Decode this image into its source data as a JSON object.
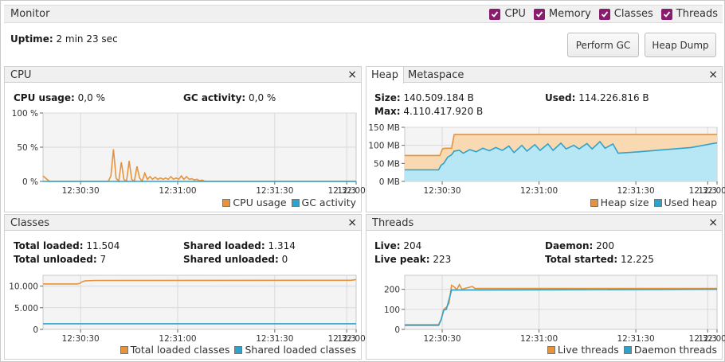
{
  "app": {
    "title": "Monitor",
    "toggles": [
      {
        "label": "CPU",
        "checked": true
      },
      {
        "label": "Memory",
        "checked": true
      },
      {
        "label": "Classes",
        "checked": true
      },
      {
        "label": "Threads",
        "checked": true
      }
    ],
    "uptime_label": "Uptime:",
    "uptime_value": "2 min 23 sec",
    "buttons": {
      "perform_gc": "Perform GC",
      "heap_dump": "Heap Dump"
    },
    "close_glyph": "×"
  },
  "colors": {
    "orange": "#e8923a",
    "blue": "#2fa2cc",
    "grid": "#d9d9d9",
    "plot_bg": "#f4f4f4",
    "accent": "#8a1c6e"
  },
  "cpu": {
    "title": "CPU",
    "stats": {
      "cpu_usage_label": "CPU usage:",
      "cpu_usage_value": "0,0 %",
      "gc_activity_label": "GC activity:",
      "gc_activity_value": "0,0 %"
    },
    "legend": [
      "CPU usage",
      "GC activity"
    ]
  },
  "heap": {
    "tabs": [
      "Heap",
      "Metaspace"
    ],
    "stats": {
      "size_label": "Size:",
      "size_value": "140.509.184 B",
      "used_label": "Used:",
      "used_value": "114.226.816 B",
      "max_label": "Max:",
      "max_value": "4.110.417.920 B"
    },
    "legend": [
      "Heap size",
      "Used heap"
    ]
  },
  "classes": {
    "title": "Classes",
    "stats": {
      "total_loaded_label": "Total loaded:",
      "total_loaded_value": "11.504",
      "shared_loaded_label": "Shared loaded:",
      "shared_loaded_value": "1.314",
      "total_unloaded_label": "Total unloaded:",
      "total_unloaded_value": "7",
      "shared_unloaded_label": "Shared unloaded:",
      "shared_unloaded_value": "0"
    },
    "legend": [
      "Total loaded classes",
      "Shared loaded classes"
    ]
  },
  "threads": {
    "title": "Threads",
    "stats": {
      "live_label": "Live:",
      "live_value": "204",
      "daemon_label": "Daemon:",
      "daemon_value": "200",
      "live_peak_label": "Live peak:",
      "live_peak_value": "223",
      "total_started_label": "Total started:",
      "total_started_value": "12.225"
    },
    "legend": [
      "Live threads",
      "Daemon threads"
    ]
  },
  "chart_data": [
    {
      "id": "cpu",
      "type": "line",
      "x_ticks": [
        "12:30:30",
        "12:31:00",
        "12:31:30",
        "12:32:00",
        "12:3"
      ],
      "y_ticks": [
        "0 %",
        "50 %",
        "100 %"
      ],
      "ylim": [
        0,
        100
      ],
      "grid": true,
      "legend_position": "bottom-right",
      "series": [
        {
          "name": "CPU usage",
          "color": "#e8923a",
          "points": [
            [
              0,
              8
            ],
            [
              3,
              3
            ],
            [
              5,
              0
            ],
            [
              50,
              0
            ],
            [
              52,
              8
            ],
            [
              54,
              47
            ],
            [
              56,
              5
            ],
            [
              58,
              0
            ],
            [
              60,
              28
            ],
            [
              62,
              3
            ],
            [
              64,
              0
            ],
            [
              66,
              30
            ],
            [
              68,
              3
            ],
            [
              70,
              0
            ],
            [
              72,
              22
            ],
            [
              74,
              5
            ],
            [
              76,
              0
            ],
            [
              78,
              12
            ],
            [
              80,
              3
            ],
            [
              82,
              7
            ],
            [
              84,
              3
            ],
            [
              86,
              6
            ],
            [
              88,
              3
            ],
            [
              90,
              5
            ],
            [
              92,
              3
            ],
            [
              94,
              5
            ],
            [
              96,
              3
            ],
            [
              98,
              7
            ],
            [
              100,
              3
            ],
            [
              102,
              5
            ],
            [
              104,
              3
            ],
            [
              106,
              8
            ],
            [
              108,
              3
            ],
            [
              110,
              7
            ],
            [
              112,
              3
            ],
            [
              114,
              4
            ],
            [
              116,
              2
            ],
            [
              118,
              3
            ],
            [
              120,
              1
            ],
            [
              122,
              2
            ],
            [
              124,
              0
            ],
            [
              240,
              0
            ]
          ]
        },
        {
          "name": "GC activity",
          "color": "#2fa2cc",
          "points": [
            [
              0,
              0
            ],
            [
              240,
              0
            ]
          ]
        }
      ]
    },
    {
      "id": "heap",
      "type": "area",
      "x_ticks": [
        "12:30:30",
        "12:31:00",
        "12:31:30",
        "12:32:00",
        "12:3"
      ],
      "y_ticks": [
        "0 MB",
        "50 MB",
        "100 MB",
        "150 MB"
      ],
      "ylim": [
        0,
        150
      ],
      "grid": true,
      "legend_position": "bottom-right",
      "series": [
        {
          "name": "Heap size",
          "color": "#e8923a",
          "points": [
            [
              0,
              72
            ],
            [
              27,
              72
            ],
            [
              29,
              90
            ],
            [
              31,
              92
            ],
            [
              36,
              92
            ],
            [
              38,
              130
            ],
            [
              240,
              130
            ]
          ]
        },
        {
          "name": "Used heap",
          "color": "#2fa2cc",
          "points": [
            [
              0,
              32
            ],
            [
              26,
              32
            ],
            [
              28,
              45
            ],
            [
              30,
              50
            ],
            [
              33,
              67
            ],
            [
              36,
              74
            ],
            [
              38,
              84
            ],
            [
              42,
              86
            ],
            [
              45,
              78
            ],
            [
              50,
              88
            ],
            [
              55,
              82
            ],
            [
              60,
              92
            ],
            [
              65,
              85
            ],
            [
              70,
              94
            ],
            [
              75,
              86
            ],
            [
              80,
              98
            ],
            [
              84,
              80
            ],
            [
              90,
              100
            ],
            [
              94,
              84
            ],
            [
              100,
              102
            ],
            [
              104,
              86
            ],
            [
              110,
              104
            ],
            [
              114,
              86
            ],
            [
              120,
              106
            ],
            [
              124,
              90
            ],
            [
              130,
              100
            ],
            [
              134,
              90
            ],
            [
              140,
              105
            ],
            [
              144,
              90
            ],
            [
              150,
              110
            ],
            [
              154,
              92
            ],
            [
              160,
              104
            ],
            [
              164,
              78
            ],
            [
              180,
              82
            ],
            [
              200,
              88
            ],
            [
              220,
              94
            ],
            [
              240,
              107
            ]
          ]
        }
      ]
    },
    {
      "id": "classes",
      "type": "line",
      "x_ticks": [
        "12:30:30",
        "12:31:00",
        "12:31:30",
        "12:32:00",
        "12:3"
      ],
      "y_ticks": [
        "0",
        "5.000",
        "10.000"
      ],
      "ylim": [
        0,
        12500
      ],
      "grid": true,
      "legend_position": "bottom-right",
      "series": [
        {
          "name": "Total loaded classes",
          "color": "#e8923a",
          "points": [
            [
              0,
              10500
            ],
            [
              26,
              10500
            ],
            [
              28,
              10600
            ],
            [
              30,
              11000
            ],
            [
              32,
              11200
            ],
            [
              40,
              11300
            ],
            [
              236,
              11350
            ],
            [
              240,
              11504
            ]
          ]
        },
        {
          "name": "Shared loaded classes",
          "color": "#2fa2cc",
          "points": [
            [
              0,
              1314
            ],
            [
              240,
              1314
            ]
          ]
        }
      ]
    },
    {
      "id": "threads",
      "type": "line",
      "x_ticks": [
        "12:30:30",
        "12:31:00",
        "12:31:30",
        "12:32:00",
        "12:3"
      ],
      "y_ticks": [
        "0",
        "100",
        "200"
      ],
      "ylim": [
        0,
        270
      ],
      "grid": true,
      "legend_position": "bottom-right",
      "series": [
        {
          "name": "Live threads",
          "color": "#e8923a",
          "points": [
            [
              0,
              24
            ],
            [
              26,
              24
            ],
            [
              28,
              50
            ],
            [
              30,
              100
            ],
            [
              32,
              110
            ],
            [
              34,
              130
            ],
            [
              36,
              220
            ],
            [
              38,
              212
            ],
            [
              40,
              198
            ],
            [
              42,
              223
            ],
            [
              44,
              200
            ],
            [
              46,
              204
            ],
            [
              52,
              214
            ],
            [
              54,
              204
            ],
            [
              240,
              204
            ]
          ]
        },
        {
          "name": "Daemon threads",
          "color": "#2fa2cc",
          "points": [
            [
              0,
              20
            ],
            [
              26,
              20
            ],
            [
              28,
              48
            ],
            [
              30,
              96
            ],
            [
              32,
              100
            ],
            [
              36,
              196
            ],
            [
              240,
              200
            ]
          ]
        }
      ]
    }
  ]
}
